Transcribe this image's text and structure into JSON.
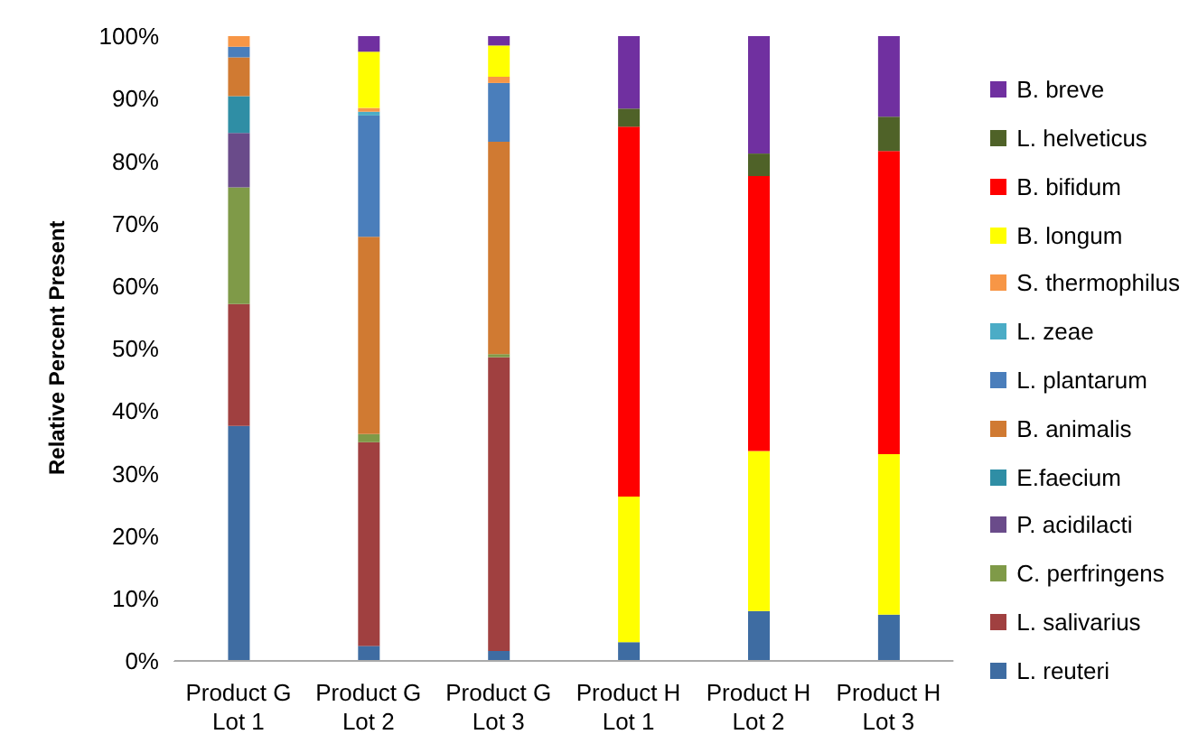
{
  "chart_data": {
    "type": "bar",
    "stacked": true,
    "ylabel": "Relative Percent Present",
    "categories": [
      "Product G Lot 1",
      "Product G Lot 2",
      "Product G Lot 3",
      "Product H Lot 1",
      "Product H Lot 2",
      "Product H Lot 3"
    ],
    "ylim": [
      0,
      100
    ],
    "yticks": [
      {
        "value": 0,
        "label": "0%"
      },
      {
        "value": 10,
        "label": "10%"
      },
      {
        "value": 20,
        "label": "20%"
      },
      {
        "value": 30,
        "label": "30%"
      },
      {
        "value": 40,
        "label": "40%"
      },
      {
        "value": 50,
        "label": "50%"
      },
      {
        "value": 60,
        "label": "60%"
      },
      {
        "value": 70,
        "label": "70%"
      },
      {
        "value": 80,
        "label": "80%"
      },
      {
        "value": 90,
        "label": "90%"
      },
      {
        "value": 100,
        "label": "100%"
      }
    ],
    "grid": false,
    "legend": "right",
    "series": [
      {
        "name": "L. reuteri",
        "color": "#3e6ca2",
        "values": [
          37.6,
          2.4,
          1.6,
          3.0,
          8.0,
          7.4
        ]
      },
      {
        "name": "L. salivarius",
        "color": "#a04040",
        "values": [
          19.5,
          32.6,
          47.0,
          0,
          0,
          0
        ]
      },
      {
        "name": "C. perfringens",
        "color": "#7f9a48",
        "values": [
          18.7,
          1.3,
          0.5,
          0,
          0,
          0
        ]
      },
      {
        "name": "P. acidilacti",
        "color": "#6a4b8a",
        "values": [
          8.7,
          0,
          0,
          0,
          0,
          0
        ]
      },
      {
        "name": "E.faecium",
        "color": "#2f8ea5",
        "values": [
          5.9,
          0,
          0,
          0,
          0,
          0
        ]
      },
      {
        "name": "B. animalis",
        "color": "#d07a32",
        "values": [
          6.2,
          31.6,
          34.0,
          0,
          0,
          0
        ]
      },
      {
        "name": "L. plantarum",
        "color": "#4a7ebb",
        "values": [
          1.7,
          19.4,
          9.4,
          0,
          0,
          0
        ]
      },
      {
        "name": "L. zeae",
        "color": "#4bacc6",
        "values": [
          0,
          0.6,
          0,
          0,
          0,
          0
        ]
      },
      {
        "name": "S. thermophilus",
        "color": "#f79646",
        "values": [
          1.7,
          0.6,
          1.0,
          0,
          0,
          0
        ]
      },
      {
        "name": "B. longum",
        "color": "#ffff00",
        "values": [
          0,
          9.0,
          5.0,
          23.3,
          25.6,
          25.7
        ]
      },
      {
        "name": "B. bifidum",
        "color": "#ff0000",
        "values": [
          0,
          0,
          0,
          59.2,
          44.0,
          48.5
        ]
      },
      {
        "name": "L. helveticus",
        "color": "#4f6228",
        "values": [
          0,
          0,
          0,
          2.9,
          3.6,
          5.5
        ]
      },
      {
        "name": "B. breve",
        "color": "#7030a0",
        "values": [
          0,
          2.5,
          1.5,
          11.6,
          18.8,
          12.9
        ]
      }
    ]
  }
}
